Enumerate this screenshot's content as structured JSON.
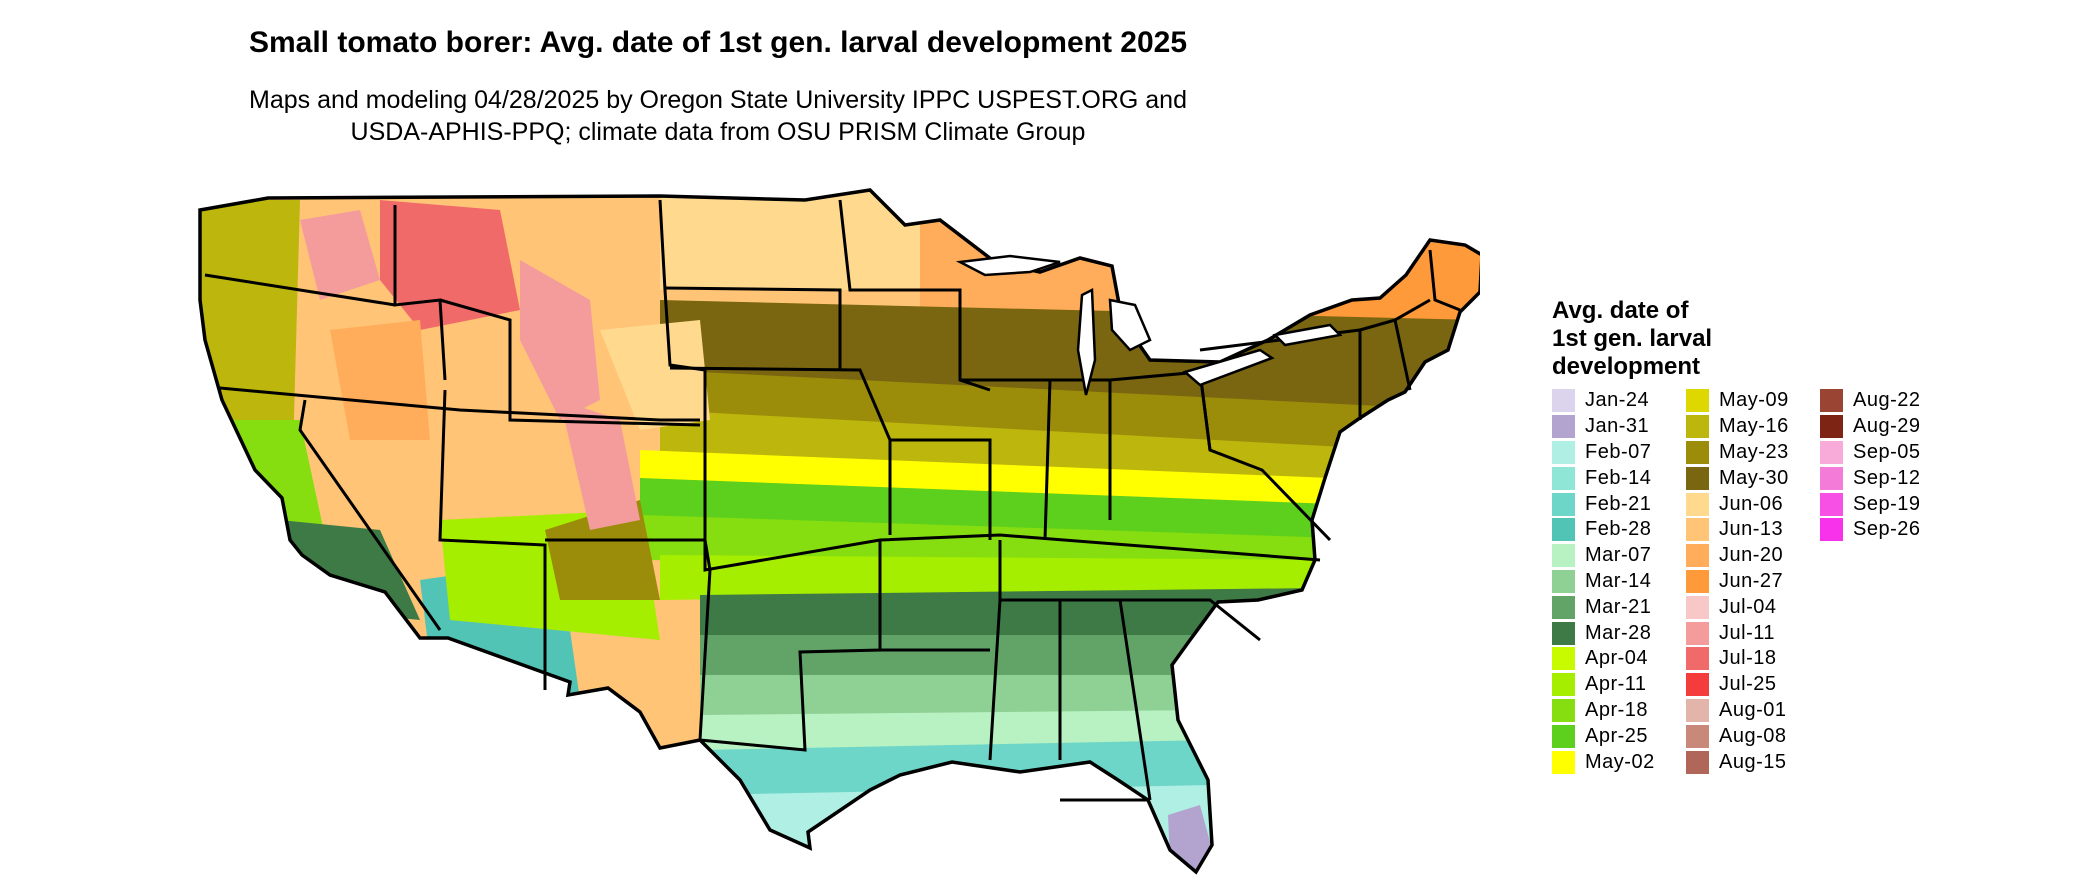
{
  "title": "Small tomato borer: Avg. date of 1st gen. larval development 2025",
  "subtitle_line1": "Maps and modeling 04/28/2025 by Oregon State University IPPC USPEST.ORG and",
  "subtitle_line2": "USDA-APHIS-PPQ; climate data from OSU PRISM Climate Group",
  "legend": {
    "title": "Avg. date of\n1st gen. larval\ndevelopment",
    "columns": [
      [
        {
          "label": "Jan-24",
          "color": "#dcd3ec"
        },
        {
          "label": "Jan-31",
          "color": "#b3a4cf"
        },
        {
          "label": "Feb-07",
          "color": "#b0f0e4"
        },
        {
          "label": "Feb-14",
          "color": "#8fe5d6"
        },
        {
          "label": "Feb-21",
          "color": "#6ed6c8"
        },
        {
          "label": "Feb-28",
          "color": "#52c4b6"
        },
        {
          "label": "Mar-07",
          "color": "#b8f2c2"
        },
        {
          "label": "Mar-14",
          "color": "#8fd095"
        },
        {
          "label": "Mar-21",
          "color": "#62a468"
        },
        {
          "label": "Mar-28",
          "color": "#3e7a45"
        },
        {
          "label": "Apr-04",
          "color": "#c8fa00"
        },
        {
          "label": "Apr-11",
          "color": "#a6ee00"
        },
        {
          "label": "Apr-18",
          "color": "#86de10"
        },
        {
          "label": "Apr-25",
          "color": "#5cd01c"
        },
        {
          "label": "May-02",
          "color": "#ffff00"
        }
      ],
      [
        {
          "label": "May-09",
          "color": "#ddd800"
        },
        {
          "label": "May-16",
          "color": "#bdb60c"
        },
        {
          "label": "May-23",
          "color": "#9b8d0a"
        },
        {
          "label": "May-30",
          "color": "#7a6510"
        },
        {
          "label": "Jun-06",
          "color": "#ffda8e"
        },
        {
          "label": "Jun-13",
          "color": "#ffc476"
        },
        {
          "label": "Jun-20",
          "color": "#ffad5a"
        },
        {
          "label": "Jun-27",
          "color": "#ff9a3a"
        },
        {
          "label": "Jul-04",
          "color": "#f8c8c8"
        },
        {
          "label": "Jul-11",
          "color": "#f49c9c"
        },
        {
          "label": "Jul-18",
          "color": "#f06a6a"
        },
        {
          "label": "Jul-25",
          "color": "#f43c3c"
        },
        {
          "label": "Aug-01",
          "color": "#e2b4aa"
        },
        {
          "label": "Aug-08",
          "color": "#c8887a"
        },
        {
          "label": "Aug-15",
          "color": "#b06658"
        }
      ],
      [
        {
          "label": "Aug-22",
          "color": "#9a4434"
        },
        {
          "label": "Aug-29",
          "color": "#7e2414"
        },
        {
          "label": "Sep-05",
          "color": "#f8aad8"
        },
        {
          "label": "Sep-12",
          "color": "#f47cd8"
        },
        {
          "label": "Sep-19",
          "color": "#f650e4"
        },
        {
          "label": "Sep-26",
          "color": "#f832ea"
        }
      ]
    ]
  }
}
